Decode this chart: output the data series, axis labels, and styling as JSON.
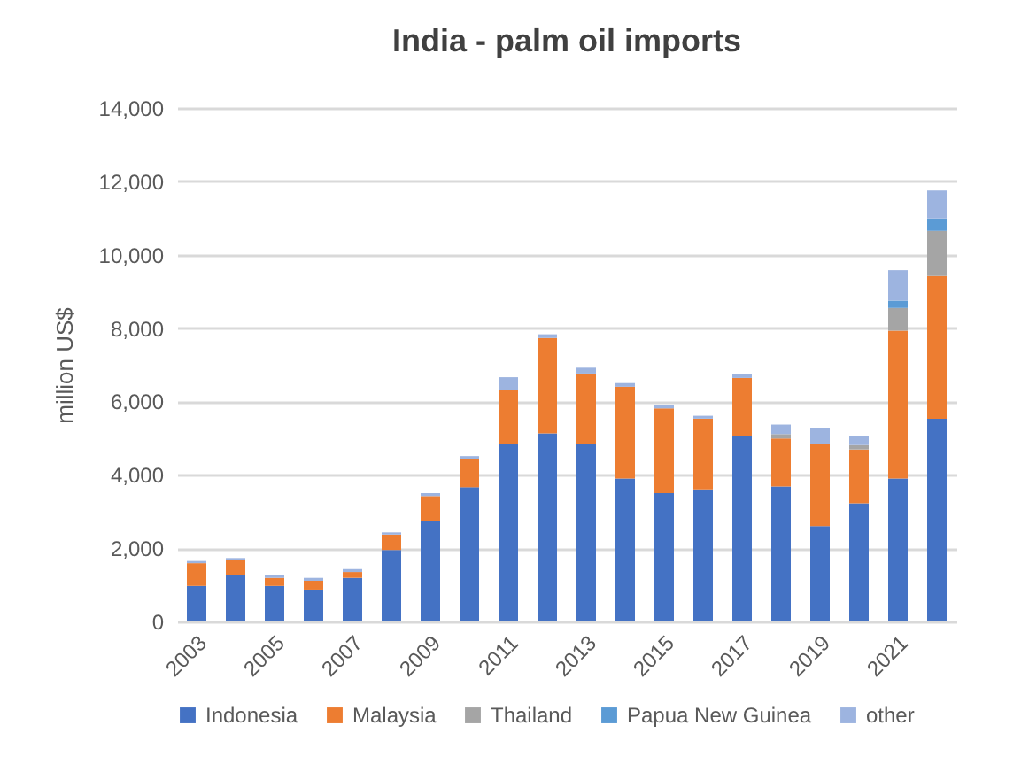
{
  "chart_data": {
    "type": "bar",
    "title": "India - palm oil imports",
    "ylabel": "million US$",
    "categories": [
      "2003",
      null,
      "2005",
      null,
      "2007",
      null,
      "2009",
      null,
      "2011",
      null,
      "2013",
      null,
      "2015",
      null,
      "2017",
      null,
      "2019",
      null,
      "2021",
      null
    ],
    "series": [
      {
        "name": "Indonesia",
        "color": "#4472c4",
        "values": [
          970,
          1270,
          970,
          870,
          1190,
          1950,
          2740,
          3660,
          4830,
          5130,
          4830,
          3900,
          3500,
          3600,
          5070,
          3680,
          2600,
          3220,
          3900,
          5530
        ]
      },
      {
        "name": "Malaysia",
        "color": "#ed7d31",
        "values": [
          620,
          400,
          220,
          240,
          160,
          420,
          680,
          770,
          1470,
          2600,
          1930,
          2500,
          2310,
          1930,
          1570,
          1310,
          2250,
          1470,
          4030,
          3890
        ]
      },
      {
        "name": "Thailand",
        "color": "#a5a5a5",
        "values": [
          0,
          0,
          0,
          0,
          0,
          0,
          0,
          0,
          0,
          0,
          0,
          0,
          0,
          0,
          0,
          120,
          null,
          120,
          620,
          1230
        ]
      },
      {
        "name": "Papua New Guinea",
        "color": "#5b9bd5",
        "values": [
          0,
          0,
          0,
          0,
          0,
          0,
          0,
          0,
          0,
          0,
          0,
          0,
          0,
          0,
          0,
          0,
          0,
          0,
          200,
          340
        ]
      },
      {
        "name": "other",
        "color": "#9db4e0",
        "values": [
          60,
          60,
          80,
          80,
          80,
          60,
          80,
          80,
          360,
          100,
          160,
          100,
          90,
          80,
          100,
          260,
          430,
          240,
          830,
          760
        ]
      }
    ],
    "stacked": true,
    "ylim": [
      0,
      14000
    ],
    "yticks": [
      0,
      {
        "value": 2000,
        "label": "2,000"
      },
      {
        "value": 4000,
        "label": "4,000"
      },
      {
        "value": 6000,
        "label": "6,000"
      },
      {
        "value": 8000,
        "label": "8,000"
      },
      {
        "value": 10000,
        "label": "10,000"
      },
      {
        "value": 12000,
        "label": "12,000"
      },
      {
        "value": 14000,
        "label": "14,000"
      }
    ],
    "grid": "y",
    "legend": "bottom"
  }
}
